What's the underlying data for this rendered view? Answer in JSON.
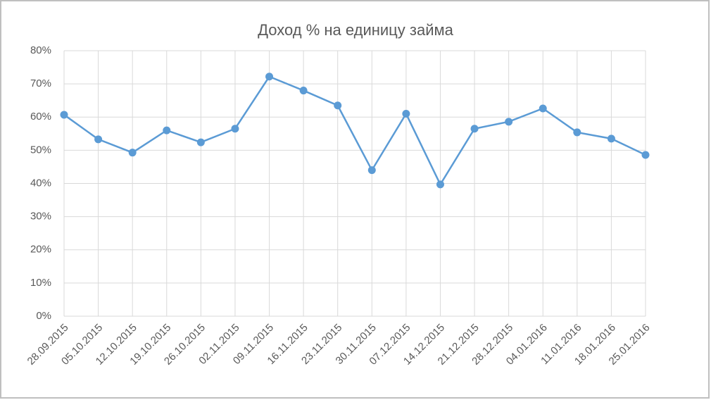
{
  "chart_data": {
    "type": "line",
    "title": "Доход % на единицу займа",
    "categories": [
      "28.09.2015",
      "05.10.2015",
      "12.10.2015",
      "19.10.2015",
      "26.10.2015",
      "02.11.2015",
      "09.11.2015",
      "16.11.2015",
      "23.11.2015",
      "30.11.2015",
      "07.12.2015",
      "14.12.2015",
      "21.12.2015",
      "28.12.2015",
      "04.01.2016",
      "11.01.2016",
      "18.01.2016",
      "25.01.2016"
    ],
    "values": [
      60.7,
      53.3,
      49.3,
      56,
      52.4,
      56.5,
      72.2,
      68,
      63.5,
      44,
      61,
      39.7,
      56.5,
      58.6,
      62.6,
      55.4,
      53.5,
      48.6
    ],
    "color": "#5b9bd5",
    "ylim": [
      0,
      80
    ],
    "yticks": [
      {
        "value": 0,
        "label": "0%"
      },
      {
        "value": 10,
        "label": "10%"
      },
      {
        "value": 20,
        "label": "20%"
      },
      {
        "value": 30,
        "label": "30%"
      },
      {
        "value": 40,
        "label": "40%"
      },
      {
        "value": 50,
        "label": "50%"
      },
      {
        "value": 60,
        "label": "60%"
      },
      {
        "value": 70,
        "label": "70%"
      },
      {
        "value": 80,
        "label": "80%"
      }
    ],
    "grid": true
  }
}
